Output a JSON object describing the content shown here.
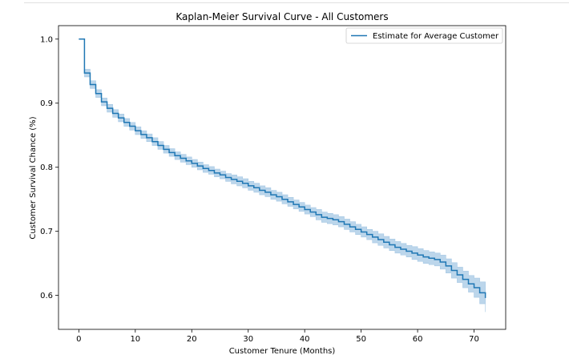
{
  "chart_data": {
    "type": "line",
    "step": true,
    "title": "Kaplan-Meier Survival Curve - All Customers",
    "xlabel": "Customer Tenure (Months)",
    "ylabel": "Customer Survival Chance (%)",
    "xlim": [
      -3.6,
      75.6
    ],
    "ylim": [
      0.547,
      1.021
    ],
    "xticks": [
      0,
      10,
      20,
      30,
      40,
      50,
      60,
      70
    ],
    "yticks": [
      0.6,
      0.7,
      0.8,
      0.9,
      1.0
    ],
    "yticklabels": [
      "0.6",
      "0.7",
      "0.8",
      "0.9",
      "1.0"
    ],
    "legend": {
      "position": "top-right",
      "entries": [
        "Estimate for Average Customer"
      ]
    },
    "series": [
      {
        "name": "Estimate for Average Customer",
        "color": "#1f77b4",
        "ci_color": "#a6c8e4",
        "x": [
          0,
          1,
          2,
          3,
          4,
          5,
          6,
          7,
          8,
          9,
          10,
          11,
          12,
          13,
          14,
          15,
          16,
          17,
          18,
          19,
          20,
          21,
          22,
          23,
          24,
          25,
          26,
          27,
          28,
          29,
          30,
          31,
          32,
          33,
          34,
          35,
          36,
          37,
          38,
          39,
          40,
          41,
          42,
          43,
          44,
          45,
          46,
          47,
          48,
          49,
          50,
          51,
          52,
          53,
          54,
          55,
          56,
          57,
          58,
          59,
          60,
          61,
          62,
          63,
          64,
          65,
          66,
          67,
          68,
          69,
          70,
          71,
          72
        ],
        "y": [
          1.0,
          0.947,
          0.929,
          0.915,
          0.902,
          0.892,
          0.884,
          0.877,
          0.87,
          0.864,
          0.857,
          0.851,
          0.846,
          0.84,
          0.834,
          0.828,
          0.823,
          0.818,
          0.814,
          0.81,
          0.806,
          0.802,
          0.798,
          0.795,
          0.791,
          0.788,
          0.784,
          0.781,
          0.778,
          0.775,
          0.771,
          0.768,
          0.764,
          0.761,
          0.757,
          0.754,
          0.75,
          0.746,
          0.742,
          0.738,
          0.734,
          0.73,
          0.726,
          0.722,
          0.72,
          0.718,
          0.715,
          0.711,
          0.707,
          0.703,
          0.699,
          0.695,
          0.691,
          0.687,
          0.683,
          0.679,
          0.675,
          0.672,
          0.669,
          0.666,
          0.663,
          0.66,
          0.658,
          0.656,
          0.652,
          0.646,
          0.639,
          0.632,
          0.625,
          0.618,
          0.612,
          0.604,
          0.596
        ],
        "ci_halfwidth": [
          0,
          0.006,
          0.006,
          0.006,
          0.006,
          0.006,
          0.006,
          0.006,
          0.006,
          0.006,
          0.006,
          0.006,
          0.006,
          0.006,
          0.006,
          0.006,
          0.006,
          0.006,
          0.006,
          0.006,
          0.006,
          0.006,
          0.006,
          0.006,
          0.006,
          0.006,
          0.006,
          0.007,
          0.007,
          0.007,
          0.007,
          0.007,
          0.007,
          0.007,
          0.007,
          0.007,
          0.007,
          0.007,
          0.007,
          0.007,
          0.007,
          0.007,
          0.008,
          0.008,
          0.008,
          0.008,
          0.008,
          0.008,
          0.008,
          0.008,
          0.008,
          0.008,
          0.009,
          0.009,
          0.009,
          0.009,
          0.009,
          0.009,
          0.009,
          0.01,
          0.01,
          0.01,
          0.01,
          0.01,
          0.011,
          0.011,
          0.012,
          0.012,
          0.013,
          0.013,
          0.015,
          0.017,
          0.022
        ]
      }
    ]
  }
}
